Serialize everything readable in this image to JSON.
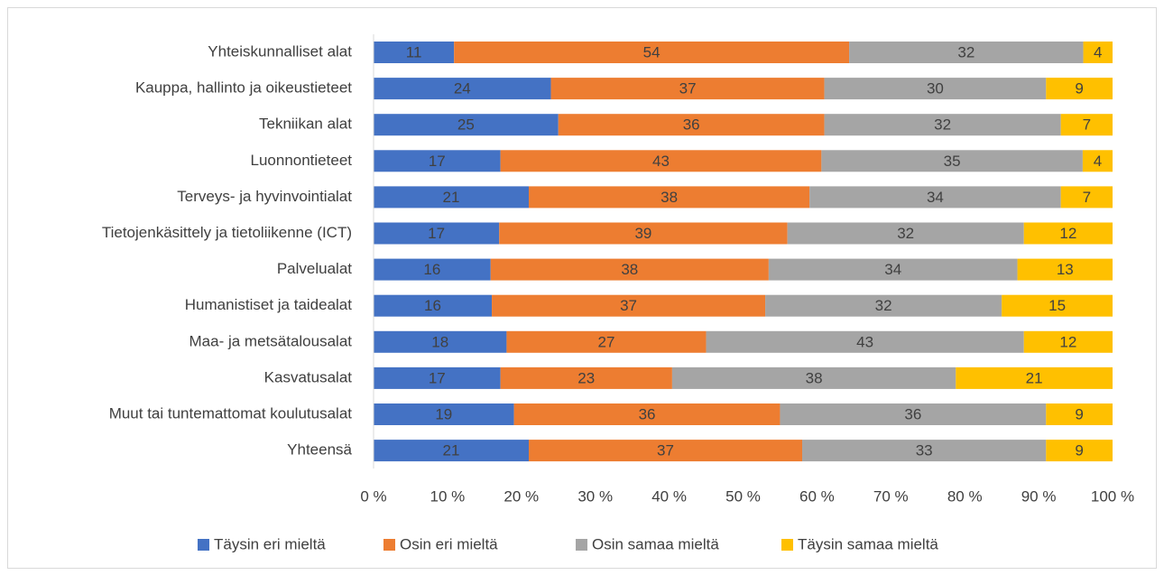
{
  "chart_data": {
    "type": "bar",
    "orientation": "horizontal",
    "stacked": "percent",
    "categories": [
      "Yhteiskunnalliset alat",
      "Kauppa, hallinto ja oikeustieteet",
      "Tekniikan alat",
      "Luonnontieteet",
      "Terveys- ja hyvinvointialat",
      "Tietojenkäsittely ja tietoliikenne (ICT)",
      "Palvelualat",
      "Humanistiset ja taidealat",
      "Maa- ja metsätalousalat",
      "Kasvatusalat",
      "Muut tai tuntemattomat koulutusalat",
      "Yhteensä"
    ],
    "series": [
      {
        "name": "Täysin eri mieltä",
        "color": "#4472c4",
        "values": [
          11,
          24,
          25,
          17,
          21,
          17,
          16,
          16,
          18,
          17,
          19,
          21
        ]
      },
      {
        "name": "Osin eri mieltä",
        "color": "#ed7d31",
        "values": [
          54,
          37,
          36,
          43,
          38,
          39,
          38,
          37,
          27,
          23,
          36,
          37
        ]
      },
      {
        "name": "Osin samaa mieltä",
        "color": "#a5a5a5",
        "values": [
          32,
          30,
          32,
          35,
          34,
          32,
          34,
          32,
          43,
          38,
          36,
          33
        ]
      },
      {
        "name": "Täysin samaa mieltä",
        "color": "#ffc000",
        "values": [
          4,
          9,
          7,
          4,
          7,
          12,
          13,
          15,
          12,
          21,
          9,
          9
        ]
      }
    ],
    "xlim": [
      0,
      100
    ],
    "xticks": [
      {
        "value": 0,
        "label": "0 %"
      },
      {
        "value": 10,
        "label": "10 %"
      },
      {
        "value": 20,
        "label": "20 %"
      },
      {
        "value": 30,
        "label": "30 %"
      },
      {
        "value": 40,
        "label": "40 %"
      },
      {
        "value": 50,
        "label": "50 %"
      },
      {
        "value": 60,
        "label": "60 %"
      },
      {
        "value": 70,
        "label": "70 %"
      },
      {
        "value": 80,
        "label": "80 %"
      },
      {
        "value": 90,
        "label": "90 %"
      },
      {
        "value": 100,
        "label": "100 %"
      }
    ],
    "legend": "bottom",
    "grid": false
  }
}
